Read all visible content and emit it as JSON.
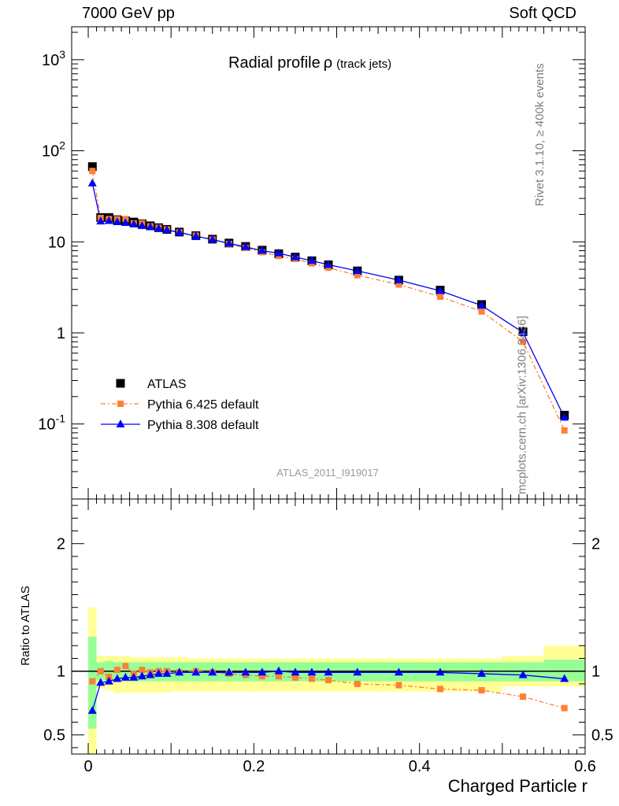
{
  "header": {
    "left": "7000 GeV pp",
    "right": "Soft QCD"
  },
  "side_text": {
    "rivet": "Rivet 3.1.10, ≥ 400k events",
    "mcplots": "mcplots.cern.ch [arXiv:1306.3436]"
  },
  "colors": {
    "atlas": "#000000",
    "pythia6": "#ff7f33",
    "pythia8": "#0000ff",
    "band_inner": "#96ff96",
    "band_outer": "#ffff96"
  },
  "chart_data": [
    {
      "type": "scatter",
      "panel": "main",
      "title": "Radial profile",
      "title_symbol": "ρ",
      "title_suffix": "(track jets)",
      "watermark": "ATLAS_2011_I919017",
      "yscale": "log",
      "xlim": [
        -0.02,
        0.6
      ],
      "ylim": [
        0.015,
        2300
      ],
      "y_tick_labels": [
        "10^-1",
        "1",
        "10",
        "10^2",
        "10^3"
      ],
      "legend": "bottom-left",
      "x": [
        0.005,
        0.015,
        0.025,
        0.035,
        0.045,
        0.055,
        0.065,
        0.075,
        0.085,
        0.095,
        0.11,
        0.13,
        0.15,
        0.17,
        0.19,
        0.21,
        0.23,
        0.25,
        0.27,
        0.29,
        0.325,
        0.375,
        0.425,
        0.475,
        0.525,
        0.575
      ],
      "series": [
        {
          "name": "ATLAS",
          "marker": "square",
          "values": [
            67,
            18.5,
            18.5,
            17.5,
            17,
            16.5,
            15.8,
            15.0,
            14.3,
            13.7,
            12.8,
            11.7,
            10.7,
            9.7,
            8.9,
            8.1,
            7.4,
            6.8,
            6.2,
            5.6,
            4.8,
            3.8,
            2.95,
            2.05,
            1.03,
            0.125
          ]
        },
        {
          "name": "Pythia 6.425 default",
          "marker": "square-small",
          "dash": "6,3,2,3",
          "values": [
            60,
            18.3,
            17.8,
            17.7,
            17.8,
            16.0,
            16.0,
            14.8,
            14.3,
            13.7,
            12.7,
            11.7,
            10.6,
            9.5,
            8.6,
            7.7,
            7.0,
            6.5,
            5.8,
            5.2,
            4.3,
            3.4,
            2.5,
            1.72,
            0.8,
            0.085
          ]
        },
        {
          "name": "Pythia 8.308 default",
          "marker": "triangle",
          "values": [
            44,
            16.8,
            17.0,
            16.5,
            16.2,
            15.6,
            15.0,
            14.5,
            14.0,
            13.5,
            12.7,
            11.5,
            10.6,
            9.6,
            8.8,
            8.0,
            7.5,
            6.8,
            6.2,
            5.6,
            4.8,
            3.8,
            2.9,
            2.0,
            1.01,
            0.118
          ]
        }
      ]
    },
    {
      "type": "scatter",
      "panel": "ratio",
      "xlabel": "Charged Particle r",
      "ylabel": "Ratio to ATLAS",
      "xlim": [
        -0.02,
        0.6
      ],
      "ylim": [
        0.35,
        2.35
      ],
      "x_ticks": [
        0,
        0.2,
        0.4,
        0.6
      ],
      "x_tick_labels": [
        "0",
        "0.2",
        "0.4",
        "0.6"
      ],
      "y_ticks": [
        0.5,
        1,
        2
      ],
      "y_tick_labels": [
        "0.5",
        "1",
        "2"
      ],
      "band_bins": [
        [
          0,
          0.01
        ],
        [
          0.01,
          0.02
        ],
        [
          0.02,
          0.03
        ],
        [
          0.03,
          0.04
        ],
        [
          0.04,
          0.05
        ],
        [
          0.05,
          0.06
        ],
        [
          0.06,
          0.07
        ],
        [
          0.07,
          0.08
        ],
        [
          0.08,
          0.09
        ],
        [
          0.09,
          0.1
        ],
        [
          0.1,
          0.12
        ],
        [
          0.12,
          0.14
        ],
        [
          0.14,
          0.16
        ],
        [
          0.16,
          0.18
        ],
        [
          0.18,
          0.2
        ],
        [
          0.2,
          0.22
        ],
        [
          0.22,
          0.24
        ],
        [
          0.24,
          0.26
        ],
        [
          0.26,
          0.28
        ],
        [
          0.28,
          0.3
        ],
        [
          0.3,
          0.35
        ],
        [
          0.35,
          0.4
        ],
        [
          0.4,
          0.45
        ],
        [
          0.45,
          0.5
        ],
        [
          0.5,
          0.55
        ],
        [
          0.55,
          0.6
        ]
      ],
      "band_inner": [
        [
          0.55,
          1.27
        ],
        [
          0.93,
          1.07
        ],
        [
          0.92,
          1.08
        ],
        [
          0.92,
          1.07
        ],
        [
          0.92,
          1.07
        ],
        [
          0.92,
          1.07
        ],
        [
          0.92,
          1.07
        ],
        [
          0.92,
          1.07
        ],
        [
          0.92,
          1.07
        ],
        [
          0.92,
          1.07
        ],
        [
          0.92,
          1.07
        ],
        [
          0.92,
          1.07
        ],
        [
          0.92,
          1.07
        ],
        [
          0.92,
          1.07
        ],
        [
          0.92,
          1.07
        ],
        [
          0.92,
          1.07
        ],
        [
          0.92,
          1.07
        ],
        [
          0.92,
          1.07
        ],
        [
          0.92,
          1.07
        ],
        [
          0.92,
          1.07
        ],
        [
          0.92,
          1.07
        ],
        [
          0.92,
          1.07
        ],
        [
          0.92,
          1.07
        ],
        [
          0.92,
          1.07
        ],
        [
          0.92,
          1.07
        ],
        [
          0.92,
          1.09
        ]
      ],
      "band_outer": [
        [
          0.35,
          1.5
        ],
        [
          0.87,
          1.12
        ],
        [
          0.85,
          1.12
        ],
        [
          0.83,
          1.12
        ],
        [
          0.83,
          1.12
        ],
        [
          0.83,
          1.11
        ],
        [
          0.83,
          1.11
        ],
        [
          0.83,
          1.11
        ],
        [
          0.83,
          1.11
        ],
        [
          0.83,
          1.11
        ],
        [
          0.84,
          1.11
        ],
        [
          0.84,
          1.1
        ],
        [
          0.84,
          1.1
        ],
        [
          0.84,
          1.1
        ],
        [
          0.84,
          1.1
        ],
        [
          0.84,
          1.1
        ],
        [
          0.84,
          1.1
        ],
        [
          0.84,
          1.1
        ],
        [
          0.84,
          1.1
        ],
        [
          0.84,
          1.1
        ],
        [
          0.84,
          1.1
        ],
        [
          0.84,
          1.1
        ],
        [
          0.84,
          1.1
        ],
        [
          0.84,
          1.1
        ],
        [
          0.88,
          1.12
        ],
        [
          0.88,
          1.2
        ]
      ],
      "x": [
        0.005,
        0.015,
        0.025,
        0.035,
        0.045,
        0.055,
        0.065,
        0.075,
        0.085,
        0.095,
        0.11,
        0.13,
        0.15,
        0.17,
        0.19,
        0.21,
        0.23,
        0.25,
        0.27,
        0.29,
        0.325,
        0.375,
        0.425,
        0.475,
        0.525,
        0.575
      ],
      "series": [
        {
          "name": "Pythia 6.425 default",
          "values": [
            0.92,
            1.0,
            0.955,
            1.01,
            1.04,
            0.98,
            1.01,
            0.99,
            1.0,
            1.0,
            0.99,
            1.0,
            0.99,
            0.98,
            0.97,
            0.96,
            0.96,
            0.95,
            0.94,
            0.93,
            0.9,
            0.89,
            0.86,
            0.85,
            0.8,
            0.71
          ]
        },
        {
          "name": "Pythia 8.308 default",
          "values": [
            0.69,
            0.91,
            0.92,
            0.94,
            0.95,
            0.95,
            0.96,
            0.97,
            0.98,
            0.98,
            0.99,
            0.99,
            0.99,
            0.99,
            0.99,
            0.99,
            1.0,
            0.99,
            0.99,
            0.99,
            0.99,
            0.99,
            0.99,
            0.98,
            0.97,
            0.94
          ]
        }
      ]
    }
  ]
}
